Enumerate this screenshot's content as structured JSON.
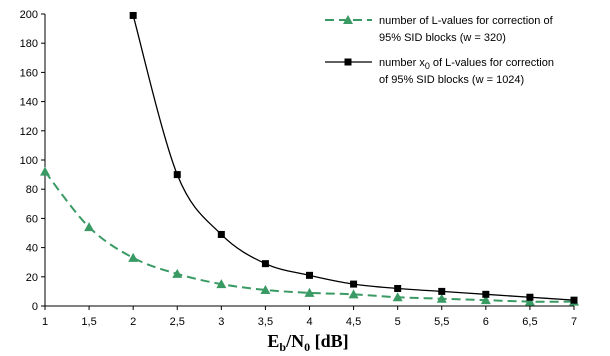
{
  "chart_data": {
    "type": "line",
    "x": [
      1,
      1.5,
      2,
      2.5,
      3,
      3.5,
      4,
      4.5,
      5,
      5.5,
      6,
      6.5,
      7
    ],
    "x_tick_labels": [
      "1",
      "1,5",
      "2",
      "2,5",
      "3",
      "3,5",
      "4",
      "4,5",
      "5",
      "5,5",
      "6",
      "6,5",
      "7"
    ],
    "y_ticks": [
      0,
      20,
      40,
      60,
      80,
      100,
      120,
      140,
      160,
      180,
      200
    ],
    "xlim": [
      1,
      7
    ],
    "ylim": [
      0,
      200
    ],
    "xlabel": {
      "main": "E",
      "sub1": "b",
      "mid": "/N",
      "sub2": "0",
      "end": " [dB]"
    },
    "ylabel": "",
    "grid": false,
    "legend_position": "top-right",
    "series": [
      {
        "name_parts": [
          "number of L-values for correction of",
          "95% SID blocks (w = 320)"
        ],
        "color": "#3a9a64",
        "line_style": "dashed",
        "marker": "triangle",
        "points": [
          [
            1,
            92
          ],
          [
            1.5,
            54
          ],
          [
            2,
            33
          ],
          [
            2.5,
            22
          ],
          [
            3,
            15
          ],
          [
            3.5,
            11
          ],
          [
            4,
            9
          ],
          [
            4.5,
            8
          ],
          [
            5,
            6
          ],
          [
            5.5,
            5
          ],
          [
            6,
            4
          ],
          [
            6.5,
            3
          ],
          [
            7,
            3
          ]
        ]
      },
      {
        "name_parts": [
          "number x",
          "0",
          " of L-values for correction",
          "of 95% SID blocks (w = 1024)"
        ],
        "color": "#000000",
        "line_style": "solid",
        "marker": "square",
        "points": [
          [
            2,
            199
          ],
          [
            2.5,
            90
          ],
          [
            3,
            49
          ],
          [
            3.5,
            29
          ],
          [
            4,
            21
          ],
          [
            4.5,
            15
          ],
          [
            5,
            12
          ],
          [
            5.5,
            10
          ],
          [
            6,
            8
          ],
          [
            6.5,
            6
          ],
          [
            7,
            4
          ]
        ]
      }
    ]
  }
}
